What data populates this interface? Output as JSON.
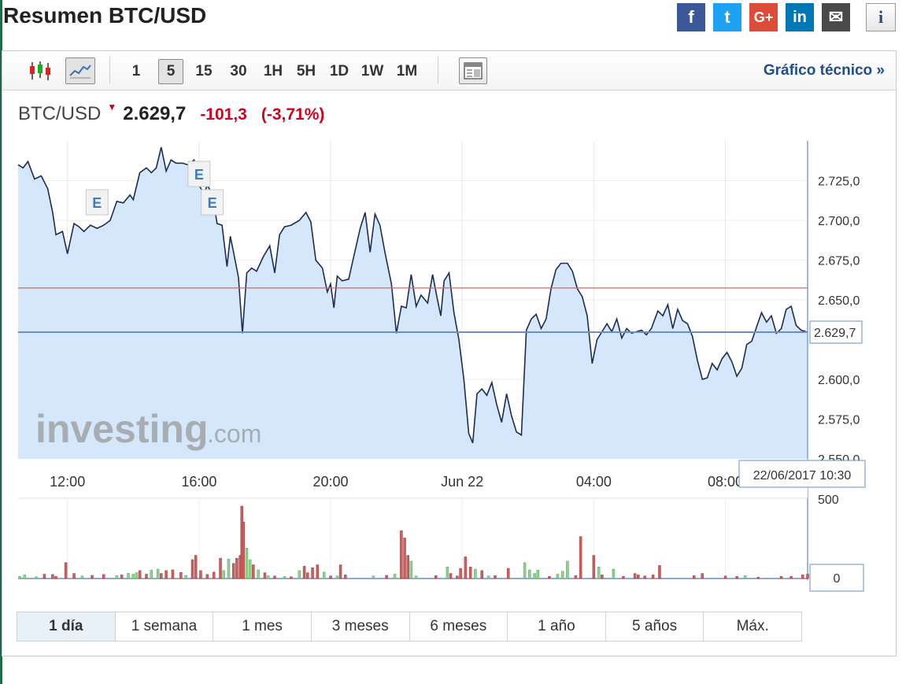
{
  "page": {
    "title": "Resumen BTC/USD"
  },
  "share": [
    {
      "name": "facebook-icon",
      "glyph": "f",
      "cls": "fb"
    },
    {
      "name": "twitter-icon",
      "glyph": "t",
      "cls": "tw"
    },
    {
      "name": "google-plus-icon",
      "glyph": "G+",
      "cls": "gp"
    },
    {
      "name": "linkedin-icon",
      "glyph": "in",
      "cls": "li"
    },
    {
      "name": "email-icon",
      "glyph": "✉",
      "cls": "em"
    }
  ],
  "info_glyph": "i",
  "toolbar": {
    "chart_types": [
      "candlestick-icon",
      "line-chart-icon"
    ],
    "intervals": [
      "1",
      "5",
      "15",
      "30",
      "1H",
      "5H",
      "1D",
      "1W",
      "1M"
    ],
    "active_interval": "5",
    "settings_icon": "table-icon",
    "tech_link": "Gráfico técnico »"
  },
  "quote": {
    "symbol": "BTC/USD",
    "arrow": "▼",
    "last": "2.629,7",
    "change": "-101,3",
    "change_pct": "(-3,71%)"
  },
  "watermark": {
    "brand": "investing",
    "suffix": ".com"
  },
  "ranges": [
    "1 día",
    "1 semana",
    "1 mes",
    "3 meses",
    "6 meses",
    "1 año",
    "5 años",
    "Máx."
  ],
  "active_range": "1 día",
  "colors": {
    "line": "#1c2c52",
    "area": "#d5e8fb",
    "prev_close": "#e06060",
    "current": "#6b8fc0",
    "vol_up": "#8fd18f",
    "vol_down": "#c96060"
  },
  "chart_data": {
    "type": "area",
    "x_unit": "hours since 10:30, 21 Jun 2017",
    "x_ticks": [
      {
        "h": 1.5,
        "label": "12:00"
      },
      {
        "h": 5.5,
        "label": "16:00"
      },
      {
        "h": 9.5,
        "label": "20:00"
      },
      {
        "h": 13.5,
        "label": "Jun 22"
      },
      {
        "h": 17.5,
        "label": "04:00"
      },
      {
        "h": 21.5,
        "label": "08:00"
      }
    ],
    "y_ticks": [
      "2.725,0",
      "2.700,0",
      "2.675,0",
      "2.650,0",
      "2.600,0",
      "2.575,0",
      "2.550,0"
    ],
    "y_tick_values": [
      2725,
      2700,
      2675,
      2650,
      2600,
      2575,
      2550
    ],
    "ylim": [
      2550,
      2750
    ],
    "xlim": [
      0,
      24
    ],
    "prev_close": 2657.5,
    "current": {
      "value": 2629.7,
      "label": "2.629,7"
    },
    "cursor_label": "22/06/2017 10:30",
    "events": [
      {
        "h": 2.4,
        "label": "E"
      },
      {
        "h": 5.5,
        "label": "E"
      },
      {
        "h": 5.9,
        "label": "E"
      }
    ],
    "price": [
      [
        0,
        2735
      ],
      [
        0.15,
        2733
      ],
      [
        0.3,
        2737
      ],
      [
        0.5,
        2726
      ],
      [
        0.7,
        2728
      ],
      [
        0.9,
        2720
      ],
      [
        1.05,
        2705
      ],
      [
        1.15,
        2691
      ],
      [
        1.35,
        2693
      ],
      [
        1.5,
        2679
      ],
      [
        1.7,
        2698
      ],
      [
        1.85,
        2696
      ],
      [
        2.0,
        2693
      ],
      [
        2.2,
        2697
      ],
      [
        2.4,
        2695
      ],
      [
        2.6,
        2697
      ],
      [
        2.8,
        2700
      ],
      [
        3.0,
        2712
      ],
      [
        3.2,
        2711
      ],
      [
        3.4,
        2716
      ],
      [
        3.5,
        2713
      ],
      [
        3.7,
        2730
      ],
      [
        3.9,
        2733
      ],
      [
        4.05,
        2730
      ],
      [
        4.2,
        2733
      ],
      [
        4.35,
        2746
      ],
      [
        4.5,
        2731
      ],
      [
        4.65,
        2738
      ],
      [
        4.8,
        2736
      ],
      [
        5.0,
        2736
      ],
      [
        5.15,
        2735
      ],
      [
        5.35,
        2738
      ],
      [
        5.5,
        2722
      ],
      [
        5.65,
        2717
      ],
      [
        5.75,
        2722
      ],
      [
        5.9,
        2717
      ],
      [
        6.05,
        2698
      ],
      [
        6.2,
        2697
      ],
      [
        6.35,
        2671
      ],
      [
        6.45,
        2690
      ],
      [
        6.55,
        2680
      ],
      [
        6.7,
        2664
      ],
      [
        6.82,
        2629
      ],
      [
        6.95,
        2667
      ],
      [
        7.1,
        2670
      ],
      [
        7.25,
        2668
      ],
      [
        7.45,
        2677
      ],
      [
        7.65,
        2684
      ],
      [
        7.8,
        2667
      ],
      [
        7.95,
        2691
      ],
      [
        8.1,
        2696
      ],
      [
        8.3,
        2697
      ],
      [
        8.55,
        2700
      ],
      [
        8.75,
        2705
      ],
      [
        8.9,
        2699
      ],
      [
        9.05,
        2675
      ],
      [
        9.25,
        2670
      ],
      [
        9.4,
        2655
      ],
      [
        9.5,
        2660
      ],
      [
        9.6,
        2645
      ],
      [
        9.7,
        2665
      ],
      [
        9.85,
        2662
      ],
      [
        10.05,
        2663
      ],
      [
        10.2,
        2677
      ],
      [
        10.4,
        2695
      ],
      [
        10.55,
        2705
      ],
      [
        10.7,
        2680
      ],
      [
        10.85,
        2704
      ],
      [
        11.0,
        2697
      ],
      [
        11.15,
        2680
      ],
      [
        11.35,
        2660
      ],
      [
        11.5,
        2629
      ],
      [
        11.65,
        2646
      ],
      [
        11.8,
        2645
      ],
      [
        11.95,
        2666
      ],
      [
        12.1,
        2646
      ],
      [
        12.25,
        2653
      ],
      [
        12.45,
        2648
      ],
      [
        12.6,
        2666
      ],
      [
        12.75,
        2650
      ],
      [
        12.85,
        2640
      ],
      [
        12.95,
        2662
      ],
      [
        13.1,
        2667
      ],
      [
        13.25,
        2642
      ],
      [
        13.4,
        2625
      ],
      [
        13.55,
        2600
      ],
      [
        13.7,
        2566
      ],
      [
        13.82,
        2560
      ],
      [
        13.95,
        2591
      ],
      [
        14.1,
        2594
      ],
      [
        14.25,
        2590
      ],
      [
        14.4,
        2598
      ],
      [
        14.55,
        2584
      ],
      [
        14.7,
        2573
      ],
      [
        14.85,
        2591
      ],
      [
        15.0,
        2577
      ],
      [
        15.15,
        2567
      ],
      [
        15.3,
        2565
      ],
      [
        15.45,
        2631
      ],
      [
        15.6,
        2638
      ],
      [
        15.75,
        2641
      ],
      [
        15.9,
        2632
      ],
      [
        16.05,
        2638
      ],
      [
        16.2,
        2657
      ],
      [
        16.35,
        2669
      ],
      [
        16.5,
        2673
      ],
      [
        16.7,
        2673
      ],
      [
        16.85,
        2668
      ],
      [
        17.0,
        2657
      ],
      [
        17.15,
        2652
      ],
      [
        17.3,
        2640
      ],
      [
        17.45,
        2610
      ],
      [
        17.6,
        2625
      ],
      [
        17.75,
        2630
      ],
      [
        17.9,
        2635
      ],
      [
        18.05,
        2630
      ],
      [
        18.2,
        2638
      ],
      [
        18.35,
        2626
      ],
      [
        18.5,
        2632
      ],
      [
        18.65,
        2629
      ],
      [
        18.8,
        2630
      ],
      [
        18.95,
        2631
      ],
      [
        19.1,
        2628
      ],
      [
        19.25,
        2632
      ],
      [
        19.45,
        2643
      ],
      [
        19.6,
        2640
      ],
      [
        19.75,
        2647
      ],
      [
        19.9,
        2632
      ],
      [
        20.05,
        2644
      ],
      [
        20.2,
        2637
      ],
      [
        20.35,
        2635
      ],
      [
        20.5,
        2627
      ],
      [
        20.65,
        2612
      ],
      [
        20.8,
        2600
      ],
      [
        20.95,
        2601
      ],
      [
        21.1,
        2610
      ],
      [
        21.25,
        2606
      ],
      [
        21.4,
        2613
      ],
      [
        21.55,
        2617
      ],
      [
        21.7,
        2611
      ],
      [
        21.85,
        2602
      ],
      [
        22.0,
        2607
      ],
      [
        22.15,
        2622
      ],
      [
        22.3,
        2624
      ],
      [
        22.45,
        2633
      ],
      [
        22.6,
        2642
      ],
      [
        22.75,
        2636
      ],
      [
        22.9,
        2640
      ],
      [
        23.05,
        2629
      ],
      [
        23.2,
        2632
      ],
      [
        23.35,
        2644
      ],
      [
        23.5,
        2646
      ],
      [
        23.65,
        2634
      ],
      [
        23.8,
        2631
      ],
      [
        24.0,
        2629.7
      ]
    ],
    "volume_axis": [
      "500",
      "0"
    ],
    "volume_max": 500,
    "volume": [
      [
        0.05,
        15,
        1
      ],
      [
        0.2,
        25,
        1
      ],
      [
        0.55,
        12,
        1
      ],
      [
        0.8,
        30,
        0
      ],
      [
        1.05,
        28,
        0
      ],
      [
        1.15,
        15,
        0
      ],
      [
        1.45,
        110,
        0
      ],
      [
        1.7,
        35,
        0
      ],
      [
        1.95,
        18,
        1
      ],
      [
        2.25,
        22,
        0
      ],
      [
        2.6,
        28,
        0
      ],
      [
        3.0,
        20,
        1
      ],
      [
        3.15,
        25,
        0
      ],
      [
        3.35,
        36,
        1
      ],
      [
        3.5,
        30,
        1
      ],
      [
        3.6,
        40,
        1
      ],
      [
        3.7,
        55,
        0
      ],
      [
        3.9,
        30,
        0
      ],
      [
        4.05,
        58,
        1
      ],
      [
        4.25,
        65,
        1
      ],
      [
        4.35,
        35,
        0
      ],
      [
        4.5,
        55,
        0
      ],
      [
        4.7,
        60,
        0
      ],
      [
        4.95,
        42,
        0
      ],
      [
        5.1,
        22,
        1
      ],
      [
        5.3,
        130,
        0
      ],
      [
        5.4,
        160,
        0
      ],
      [
        5.55,
        55,
        0
      ],
      [
        5.75,
        28,
        0
      ],
      [
        5.95,
        45,
        0
      ],
      [
        6.15,
        140,
        0
      ],
      [
        6.25,
        55,
        1
      ],
      [
        6.4,
        135,
        1
      ],
      [
        6.55,
        105,
        0
      ],
      [
        6.65,
        140,
        0
      ],
      [
        6.75,
        160,
        0
      ],
      [
        6.8,
        500,
        0
      ],
      [
        6.85,
        390,
        0
      ],
      [
        6.95,
        210,
        1
      ],
      [
        7.05,
        130,
        1
      ],
      [
        7.15,
        95,
        0
      ],
      [
        7.3,
        60,
        1
      ],
      [
        7.5,
        40,
        0
      ],
      [
        7.6,
        20,
        1
      ],
      [
        7.8,
        18,
        0
      ],
      [
        8.1,
        15,
        1
      ],
      [
        8.3,
        12,
        0
      ],
      [
        8.55,
        55,
        1
      ],
      [
        8.7,
        85,
        0
      ],
      [
        8.8,
        40,
        0
      ],
      [
        8.95,
        75,
        0
      ],
      [
        9.1,
        95,
        0
      ],
      [
        9.3,
        45,
        1
      ],
      [
        9.5,
        18,
        0
      ],
      [
        9.7,
        18,
        1
      ],
      [
        9.8,
        95,
        0
      ],
      [
        9.95,
        25,
        0
      ],
      [
        10.8,
        18,
        1
      ],
      [
        11.2,
        22,
        0
      ],
      [
        11.45,
        30,
        1
      ],
      [
        11.65,
        330,
        0
      ],
      [
        11.75,
        280,
        0
      ],
      [
        11.85,
        160,
        0
      ],
      [
        11.95,
        120,
        1
      ],
      [
        12.1,
        18,
        1
      ],
      [
        12.7,
        20,
        0
      ],
      [
        13.05,
        80,
        1
      ],
      [
        13.15,
        35,
        0
      ],
      [
        13.35,
        18,
        0
      ],
      [
        13.45,
        70,
        0
      ],
      [
        13.6,
        150,
        0
      ],
      [
        13.75,
        80,
        0
      ],
      [
        13.9,
        65,
        1
      ],
      [
        14.1,
        55,
        0
      ],
      [
        14.3,
        18,
        1
      ],
      [
        14.5,
        20,
        0
      ],
      [
        14.9,
        70,
        0
      ],
      [
        15.4,
        110,
        1
      ],
      [
        15.55,
        60,
        1
      ],
      [
        15.7,
        35,
        1
      ],
      [
        15.8,
        58,
        1
      ],
      [
        16.15,
        15,
        0
      ],
      [
        16.4,
        30,
        1
      ],
      [
        16.55,
        50,
        1
      ],
      [
        16.7,
        120,
        1
      ],
      [
        16.95,
        20,
        0
      ],
      [
        17.1,
        290,
        0
      ],
      [
        17.5,
        160,
        0
      ],
      [
        17.65,
        80,
        1
      ],
      [
        17.75,
        25,
        0
      ],
      [
        18.1,
        65,
        1
      ],
      [
        18.4,
        15,
        0
      ],
      [
        18.75,
        35,
        0
      ],
      [
        18.85,
        25,
        0
      ],
      [
        19.05,
        18,
        0
      ],
      [
        19.3,
        25,
        0
      ],
      [
        19.5,
        90,
        0
      ],
      [
        20.55,
        20,
        0
      ],
      [
        20.8,
        35,
        0
      ],
      [
        21.5,
        18,
        0
      ],
      [
        21.85,
        15,
        0
      ],
      [
        22.1,
        20,
        1
      ],
      [
        22.5,
        10,
        0
      ],
      [
        23.2,
        15,
        0
      ],
      [
        23.5,
        15,
        0
      ],
      [
        23.85,
        25,
        0
      ],
      [
        24.0,
        30,
        0
      ]
    ]
  }
}
